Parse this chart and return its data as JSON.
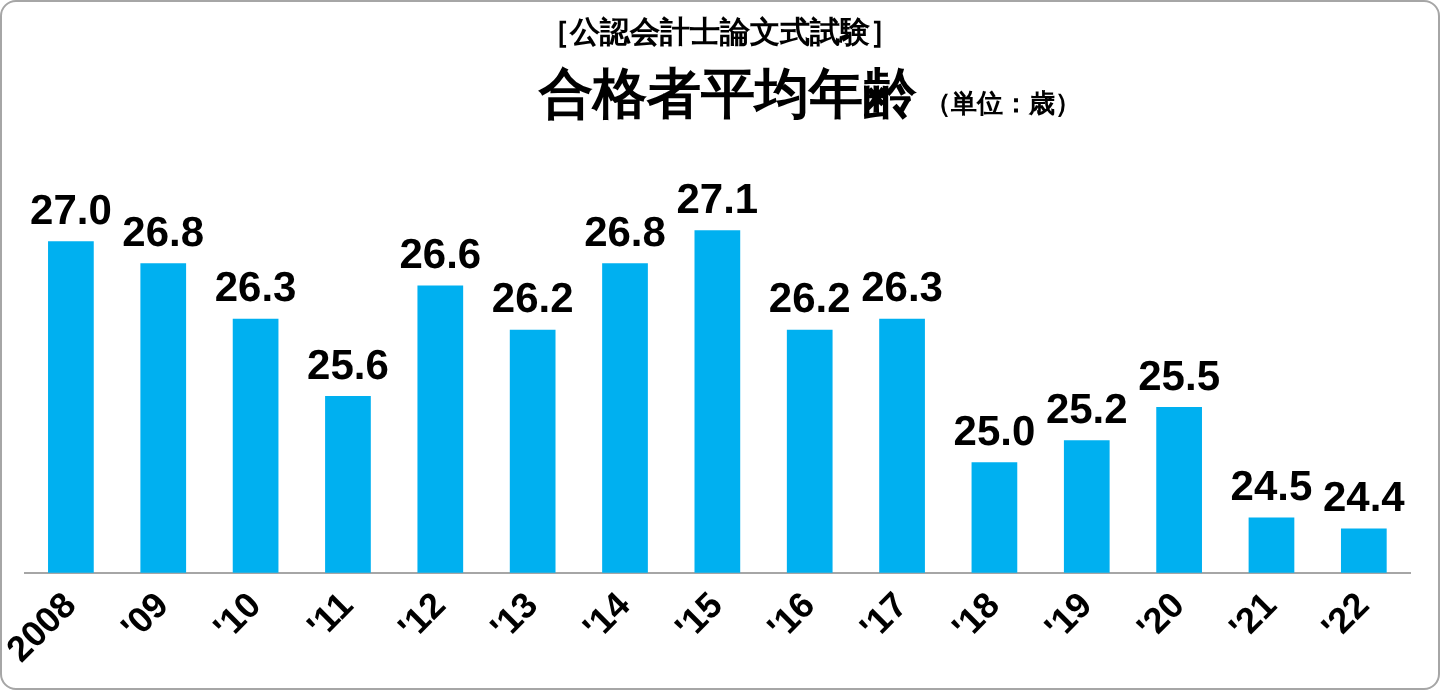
{
  "chart_data": {
    "type": "bar",
    "title": "合格者平均年齢",
    "subtitle": "［公認会計士論文式試験］",
    "annotations": [
      "（単位：歳）"
    ],
    "categories": [
      "2008",
      "'09",
      "'10",
      "'11",
      "'12",
      "'13",
      "'14",
      "'15",
      "'16",
      "'17",
      "'18",
      "'19",
      "'20",
      "'21",
      "'22"
    ],
    "values": [
      27.0,
      26.8,
      26.3,
      25.6,
      26.6,
      26.2,
      26.8,
      27.1,
      26.2,
      26.3,
      25.0,
      25.2,
      25.5,
      24.5,
      24.4
    ],
    "value_labels": [
      "27.0",
      "26.8",
      "26.3",
      "25.6",
      "26.6",
      "26.2",
      "26.8",
      "27.1",
      "26.2",
      "26.3",
      "25.0",
      "25.2",
      "25.5",
      "24.5",
      "24.4"
    ],
    "color": "#00b0f0",
    "grid": false,
    "legend": false
  }
}
